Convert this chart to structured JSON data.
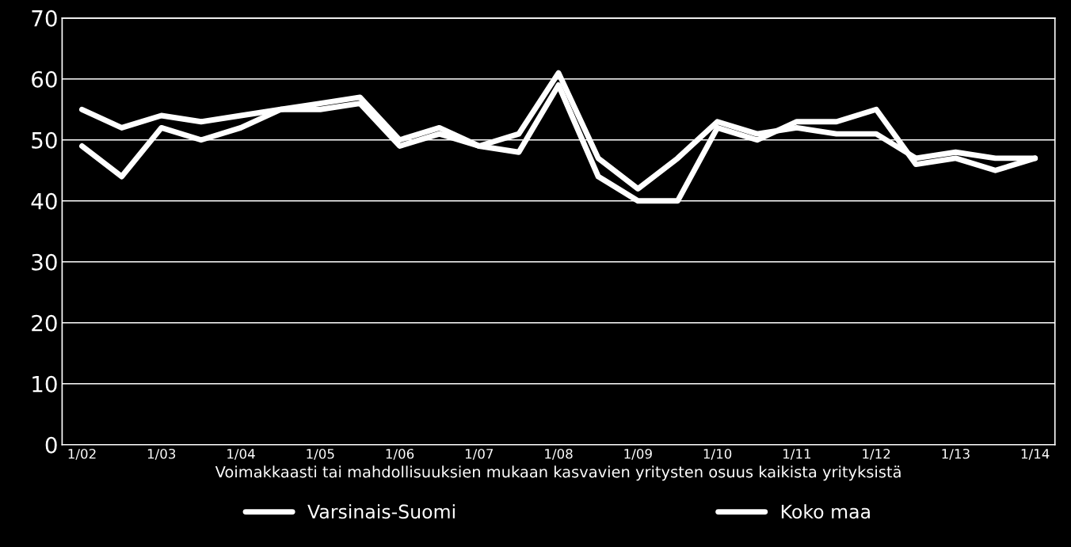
{
  "chart_data": {
    "type": "line",
    "categories": [
      "1/02",
      null,
      "1/03",
      null,
      "1/04",
      null,
      "1/05",
      null,
      "1/06",
      null,
      "1/07",
      null,
      "1/08",
      null,
      "1/09",
      null,
      "1/10",
      null,
      "1/11",
      null,
      "1/12",
      null,
      "1/13",
      null,
      "1/14"
    ],
    "series": [
      {
        "name": "Varsinais-Suomi",
        "color": "#ffffff",
        "values": [
          49,
          44,
          52,
          50,
          52,
          55,
          55,
          56,
          49,
          51,
          49,
          48,
          59,
          44,
          40,
          40,
          52,
          50,
          53,
          53,
          55,
          46,
          47,
          45,
          47
        ]
      },
      {
        "name": "Koko maa",
        "color": "#ffffff",
        "values": [
          55,
          52,
          54,
          53,
          54,
          55,
          56,
          57,
          50,
          52,
          49,
          51,
          61,
          47,
          42,
          47,
          53,
          51,
          52,
          51,
          51,
          47,
          48,
          47,
          47
        ]
      }
    ],
    "xlabel": "Voimakkaasti tai mahdollisuuksien mukaan kasvavien yritysten osuus kaikista yrityksistä",
    "ylim": [
      0,
      70
    ],
    "yticks": [
      0,
      10,
      20,
      30,
      40,
      50,
      60,
      70
    ],
    "grid": "y",
    "legend": "bottom",
    "marker": "none",
    "line_style": "solid"
  }
}
